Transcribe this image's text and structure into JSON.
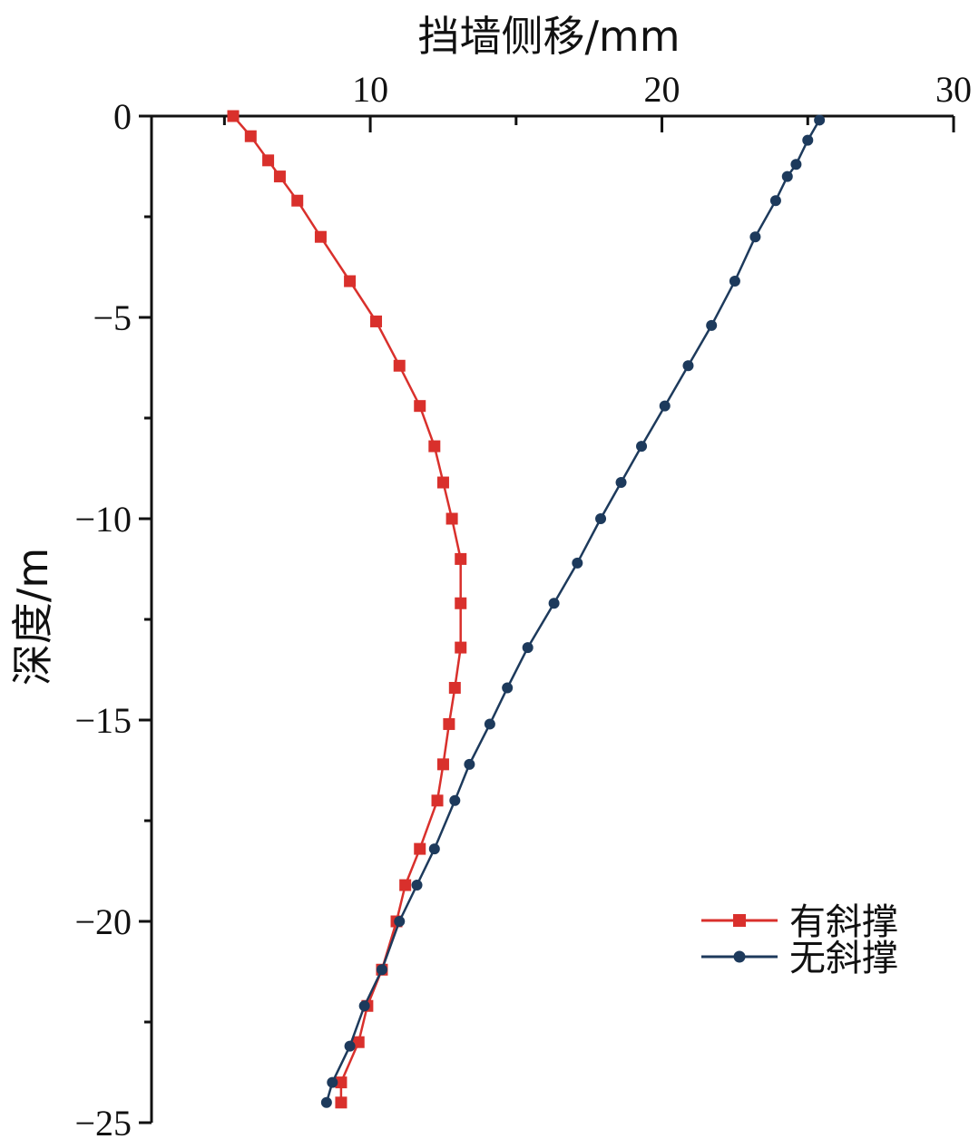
{
  "chart_data": {
    "type": "line",
    "title": "",
    "xlabel": "挡墙侧移/mm",
    "ylabel": "深度/m",
    "xlim": [
      2.5,
      30
    ],
    "ylim": [
      -25,
      0
    ],
    "x_ticks": [
      "10",
      "20",
      "30"
    ],
    "y_ticks": [
      "0",
      "−5",
      "−10",
      "−15",
      "−20",
      "−25"
    ],
    "x_axis_position": "top",
    "grid": false,
    "legend_position": "lower-right",
    "series": [
      {
        "name": "有斜撑",
        "color": "#d9302c",
        "marker": "square",
        "points": [
          [
            5.3,
            0
          ],
          [
            5.9,
            -0.5
          ],
          [
            6.5,
            -1.1
          ],
          [
            6.9,
            -1.5
          ],
          [
            7.5,
            -2.1
          ],
          [
            8.3,
            -3.0
          ],
          [
            9.3,
            -4.1
          ],
          [
            10.2,
            -5.1
          ],
          [
            11.0,
            -6.2
          ],
          [
            11.7,
            -7.2
          ],
          [
            12.2,
            -8.2
          ],
          [
            12.5,
            -9.1
          ],
          [
            12.8,
            -10.0
          ],
          [
            13.1,
            -11.0
          ],
          [
            13.1,
            -12.1
          ],
          [
            13.1,
            -13.2
          ],
          [
            12.9,
            -14.2
          ],
          [
            12.7,
            -15.1
          ],
          [
            12.5,
            -16.1
          ],
          [
            12.3,
            -17.0
          ],
          [
            11.7,
            -18.2
          ],
          [
            11.2,
            -19.1
          ],
          [
            10.9,
            -20.0
          ],
          [
            10.4,
            -21.2
          ],
          [
            9.9,
            -22.1
          ],
          [
            9.6,
            -23.0
          ],
          [
            9.0,
            -24.0
          ],
          [
            9.0,
            -24.5
          ]
        ]
      },
      {
        "name": "无斜撑",
        "color": "#1d3a5c",
        "marker": "circle",
        "points": [
          [
            25.4,
            -0.1
          ],
          [
            25.0,
            -0.6
          ],
          [
            24.6,
            -1.2
          ],
          [
            24.3,
            -1.5
          ],
          [
            23.9,
            -2.1
          ],
          [
            23.2,
            -3.0
          ],
          [
            22.5,
            -4.1
          ],
          [
            21.7,
            -5.2
          ],
          [
            20.9,
            -6.2
          ],
          [
            20.1,
            -7.2
          ],
          [
            19.3,
            -8.2
          ],
          [
            18.6,
            -9.1
          ],
          [
            17.9,
            -10.0
          ],
          [
            17.1,
            -11.1
          ],
          [
            16.3,
            -12.1
          ],
          [
            15.4,
            -13.2
          ],
          [
            14.7,
            -14.2
          ],
          [
            14.1,
            -15.1
          ],
          [
            13.4,
            -16.1
          ],
          [
            12.9,
            -17.0
          ],
          [
            12.2,
            -18.2
          ],
          [
            11.6,
            -19.1
          ],
          [
            11.0,
            -20.0
          ],
          [
            10.4,
            -21.2
          ],
          [
            9.8,
            -22.1
          ],
          [
            9.3,
            -23.1
          ],
          [
            8.7,
            -24.0
          ],
          [
            8.5,
            -24.5
          ]
        ]
      }
    ]
  }
}
